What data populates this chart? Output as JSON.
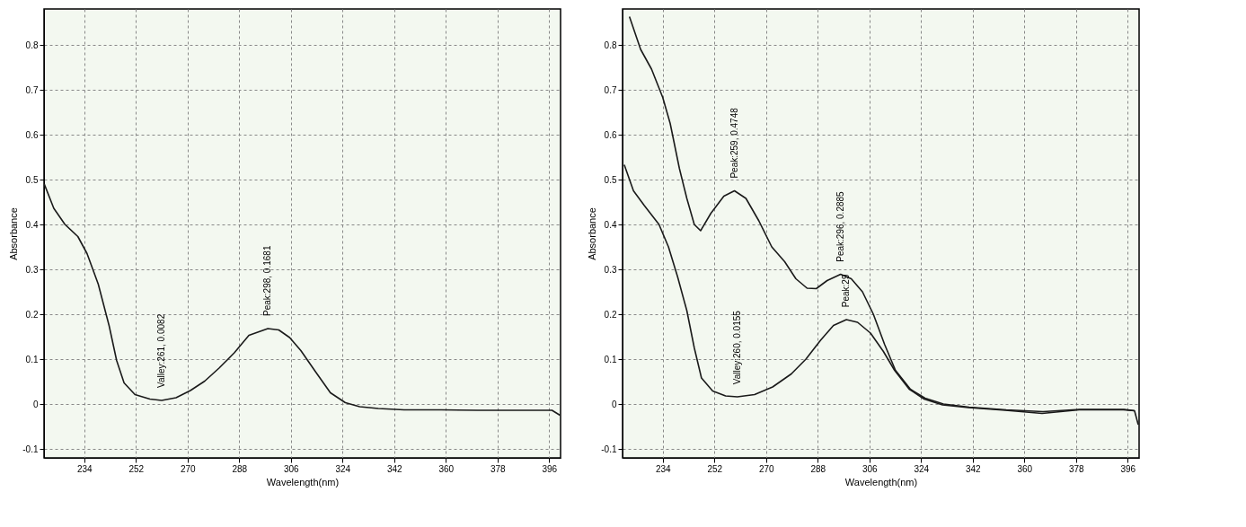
{
  "chart_data": [
    {
      "type": "line",
      "xlabel": "Wavelength(nm)",
      "ylabel": "Absorbance",
      "xlim": [
        220,
        400
      ],
      "ylim": [
        -0.12,
        0.88
      ],
      "xticks": [
        234,
        252,
        270,
        288,
        306,
        324,
        342,
        360,
        378,
        396
      ],
      "yticks": [
        -0.1,
        0,
        0.1,
        0.2,
        0.3,
        0.4,
        0.5,
        0.6,
        0.7,
        0.8
      ],
      "grid": true,
      "line_style": "solid",
      "series": [
        {
          "color": "#1a1a1a",
          "x": [
            220.1,
            223.4,
            227.3,
            231.8,
            235,
            238.9,
            242.7,
            245.3,
            247.9,
            251.7,
            256.9,
            261,
            266,
            271,
            276,
            281,
            286.3,
            291.4,
            298,
            301.8,
            305.6,
            309.5,
            314.6,
            319.8,
            325,
            330,
            336.5,
            345.5,
            358.4,
            371.2,
            384,
            397,
            399.8
          ],
          "values": [
            0.49,
            0.436,
            0.4,
            0.373,
            0.335,
            0.267,
            0.174,
            0.097,
            0.047,
            0.021,
            0.011,
            0.008,
            0.014,
            0.03,
            0.051,
            0.08,
            0.114,
            0.153,
            0.168,
            0.165,
            0.148,
            0.119,
            0.072,
            0.025,
            0.003,
            -0.006,
            -0.01,
            -0.013,
            -0.013,
            -0.014,
            -0.014,
            -0.014,
            -0.025
          ]
        }
      ],
      "annotations": [
        {
          "text": "Valley:261, 0.0082",
          "x": 261,
          "y": 0.0082
        },
        {
          "text": "Peak:298, 0.1681",
          "x": 298,
          "y": 0.1681
        }
      ]
    },
    {
      "type": "line",
      "xlabel": "Wavelength(nm)",
      "ylabel": "Absorbance",
      "xlim": [
        220,
        400
      ],
      "ylim": [
        -0.12,
        0.88
      ],
      "xticks": [
        234,
        252,
        270,
        288,
        306,
        324,
        342,
        360,
        378,
        396
      ],
      "yticks": [
        -0.1,
        0,
        0.1,
        0.2,
        0.3,
        0.4,
        0.5,
        0.6,
        0.7,
        0.8
      ],
      "grid": true,
      "line_style": "solid",
      "series": [
        {
          "color": "#1a1a1a",
          "x": [
            222.4,
            226.3,
            230.1,
            234,
            236.6,
            239.8,
            242.4,
            245,
            247.2,
            250.8,
            255.3,
            259,
            263,
            267.5,
            272,
            276.5,
            280.4,
            284.3,
            287.5,
            291.3,
            296,
            299.7,
            303.6,
            307.4,
            311.3,
            315.1,
            320.3,
            325.4,
            331.8,
            340.8,
            353.7,
            366.5,
            379.4,
            394.8,
            398.4,
            399.7
          ],
          "values": [
            0.863,
            0.79,
            0.746,
            0.683,
            0.625,
            0.525,
            0.458,
            0.4,
            0.386,
            0.425,
            0.463,
            0.475,
            0.458,
            0.408,
            0.35,
            0.317,
            0.279,
            0.258,
            0.257,
            0.275,
            0.289,
            0.279,
            0.25,
            0.2,
            0.133,
            0.075,
            0.033,
            0.013,
            0,
            -0.007,
            -0.013,
            -0.017,
            -0.012,
            -0.012,
            -0.015,
            -0.046
          ]
        },
        {
          "color": "#1a1a1a",
          "x": [
            220.6,
            223.8,
            227.6,
            232.7,
            236,
            239.2,
            242.4,
            245,
            247.5,
            251.4,
            255.9,
            260,
            266,
            272.3,
            278.8,
            283.9,
            289,
            293.5,
            298,
            301.9,
            306.4,
            310.9,
            314.8,
            319.9,
            325.1,
            331.5,
            340.5,
            353.4,
            366.2,
            379.1,
            394.5,
            398.4
          ],
          "values": [
            0.533,
            0.475,
            0.442,
            0.4,
            0.35,
            0.283,
            0.208,
            0.125,
            0.058,
            0.029,
            0.018,
            0.016,
            0.021,
            0.038,
            0.067,
            0.1,
            0.142,
            0.175,
            0.188,
            0.182,
            0.158,
            0.117,
            0.075,
            0.033,
            0.011,
            -0.002,
            -0.008,
            -0.014,
            -0.021,
            -0.013,
            -0.013,
            -0.015
          ]
        }
      ],
      "annotations": [
        {
          "text": "Peak:259, 0.4748",
          "x": 259,
          "y": 0.4748
        },
        {
          "text": "Peak:296, 0.2885",
          "x": 296,
          "y": 0.2885
        },
        {
          "text": "Valley:260, 0.0155",
          "x": 260,
          "y": 0.0155
        },
        {
          "text": "Peak:29",
          "x": 298,
          "y": 0.1875
        }
      ]
    }
  ]
}
